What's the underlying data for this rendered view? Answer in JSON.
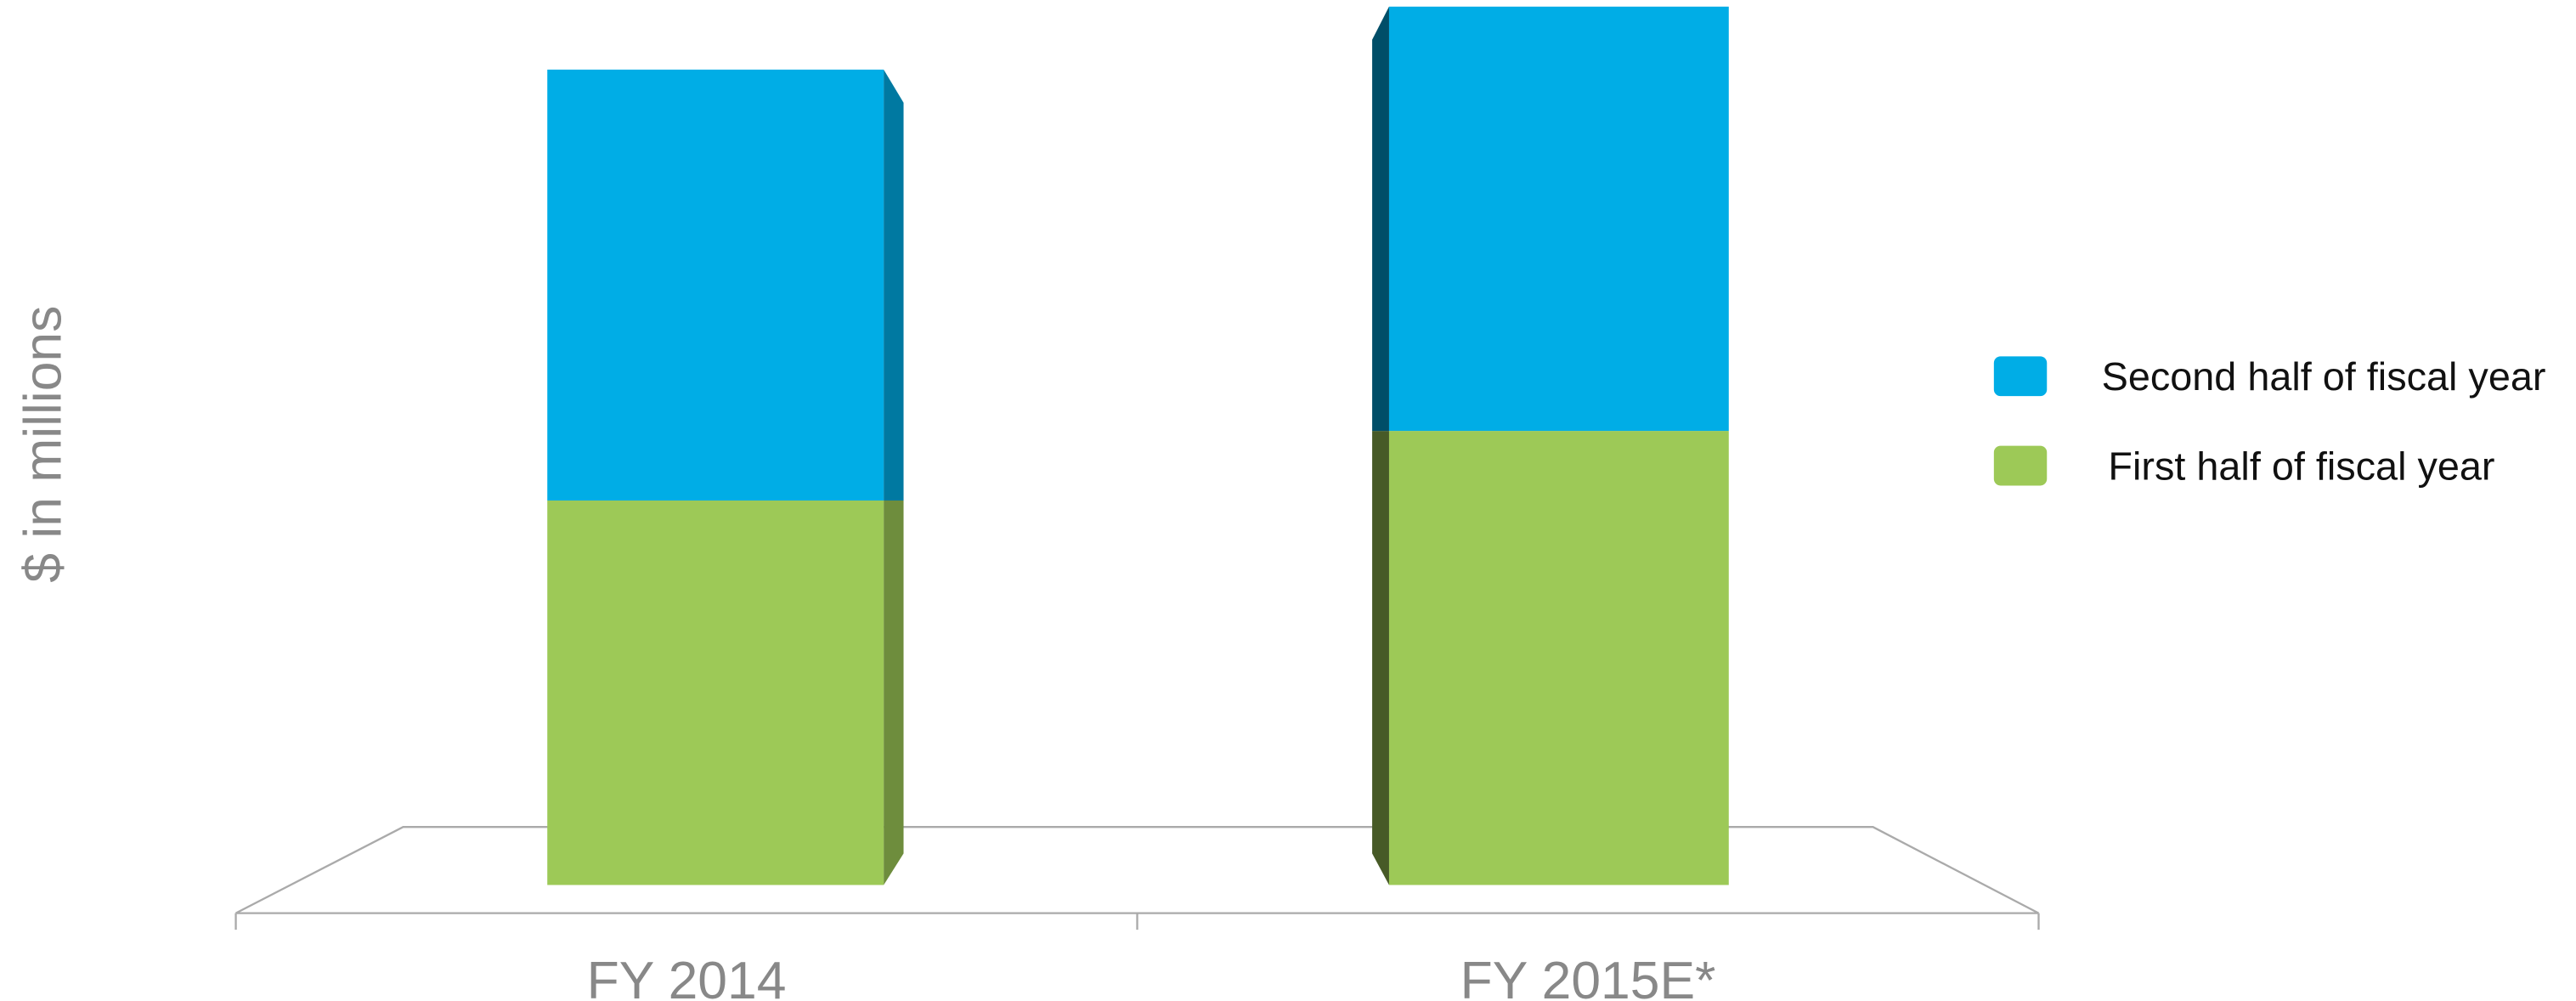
{
  "chart_data": {
    "type": "stacked_bar",
    "y_label": "$ in millions",
    "categories": [
      "FY 2014",
      "FY 2015E*"
    ],
    "series": [
      {
        "name": "First half of fiscal year",
        "color": "#9dc957",
        "values": [
          232,
          274
        ]
      },
      {
        "name": "Second half of fiscal year",
        "color": "#00ade6",
        "values": [
          260,
          256
        ]
      }
    ],
    "ylim": [
      0,
      534
    ],
    "legend": "right"
  }
}
